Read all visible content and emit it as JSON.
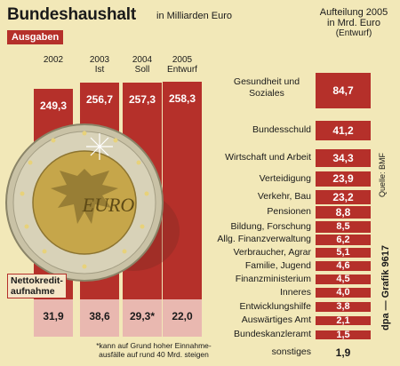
{
  "header": {
    "title": "Bundeshaushalt",
    "unit": "in Milliarden Euro",
    "section_label": "Ausgaben"
  },
  "colors": {
    "background": "#f2e8b8",
    "bar_red": "#b5302a",
    "credit_pink": "#e9b8b0"
  },
  "chart_data": [
    {
      "type": "bar",
      "categories": [
        "2002",
        "2003 Ist",
        "2004 Soll",
        "2005 Entwurf"
      ],
      "series": [
        {
          "name": "Ausgaben",
          "values": [
            249.3,
            256.7,
            257.3,
            258.3
          ]
        },
        {
          "name": "Nettokredit-aufnahme",
          "values": [
            31.9,
            38.6,
            29.3,
            22.0
          ]
        }
      ],
      "value_labels_ausgaben": [
        "249,3",
        "256,7",
        "257,3",
        "258,3"
      ],
      "value_labels_credit": [
        "31,9",
        "38,6",
        "29,3*",
        "22,0"
      ],
      "footnote": "*kann auf Grund hoher Einnahme-ausfälle auf rund 40 Mrd. steigen"
    },
    {
      "type": "bar",
      "title": "Aufteilung 2005 in Mrd. Euro",
      "subtitle": "(Entwurf)",
      "categories": [
        "Gesundheit und Soziales",
        "Bundesschuld",
        "Wirtschaft und Arbeit",
        "Verteidigung",
        "Verkehr, Bau",
        "Pensionen",
        "Bildung, Forschung",
        "Allg. Finanzverwaltung",
        "Verbraucher, Agrar",
        "Familie, Jugend",
        "Finanzministerium",
        "Inneres",
        "Entwicklungshilfe",
        "Auswärtiges Amt",
        "Bundeskanzleramt",
        "sonstiges"
      ],
      "values": [
        84.7,
        41.2,
        34.3,
        23.9,
        23.2,
        8.8,
        8.5,
        6.2,
        5.1,
        4.6,
        4.5,
        4.0,
        3.8,
        2.1,
        1.5,
        1.9
      ],
      "value_labels": [
        "84,7",
        "41,2",
        "34,3",
        "23,9",
        "23,2",
        "8,8",
        "8,5",
        "6,2",
        "5,1",
        "4,6",
        "4,5",
        "4,0",
        "3,8",
        "2,1",
        "1,5",
        "1,9"
      ]
    }
  ],
  "left": {
    "years": [
      {
        "year": "2002",
        "sub": ""
      },
      {
        "year": "2003",
        "sub": "Ist"
      },
      {
        "year": "2004",
        "sub": "Soll"
      },
      {
        "year": "2005",
        "sub": "Entwurf"
      }
    ],
    "credit_label_line1": "Nettokredit-",
    "credit_label_line2": "aufnahme",
    "footnote_line1": "*kann auf Grund hoher Einnahme-",
    "footnote_line2": "ausfälle auf rund 40 Mrd. steigen",
    "coin_text": "EURO"
  },
  "right": {
    "head_line1": "Aufteilung 2005",
    "head_line2": "in Mrd. Euro",
    "head_line3": "(Entwurf)"
  },
  "source": "Quelle: BMF",
  "credit": "dpa — Grafik 9617"
}
